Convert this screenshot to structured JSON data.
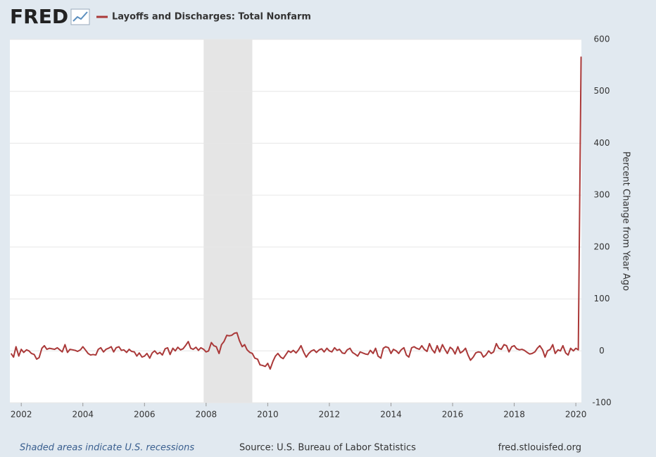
{
  "chart_data": {
    "type": "line",
    "logo": "FRED",
    "y_label": "Percent Change from Year Ago",
    "footer_left": "Shaded areas indicate U.S. recessions",
    "footer_source": "Source: U.S. Bureau of Labor Statistics",
    "footer_right": "fred.stlouisfed.org",
    "xlim": [
      2001.63,
      2020.18
    ],
    "xticks": [
      2002,
      2004,
      2006,
      2008,
      2010,
      2012,
      2014,
      2016,
      2018,
      2020
    ],
    "ylim": [
      -100,
      600
    ],
    "yticks": [
      -100,
      0,
      100,
      200,
      300,
      400,
      500,
      600
    ],
    "grid": true,
    "recessions": [
      [
        2007.92,
        2009.5
      ]
    ],
    "x": [
      2001.67,
      2001.75,
      2001.83,
      2001.92,
      2002.0,
      2002.08,
      2002.17,
      2002.25,
      2002.33,
      2002.42,
      2002.5,
      2002.58,
      2002.67,
      2002.75,
      2002.83,
      2002.92,
      2003.0,
      2003.08,
      2003.17,
      2003.25,
      2003.33,
      2003.42,
      2003.5,
      2003.58,
      2003.67,
      2003.75,
      2003.83,
      2003.92,
      2004.0,
      2004.08,
      2004.17,
      2004.25,
      2004.33,
      2004.42,
      2004.5,
      2004.58,
      2004.67,
      2004.75,
      2004.83,
      2004.92,
      2005.0,
      2005.08,
      2005.17,
      2005.25,
      2005.33,
      2005.42,
      2005.5,
      2005.58,
      2005.67,
      2005.75,
      2005.83,
      2005.92,
      2006.0,
      2006.08,
      2006.17,
      2006.25,
      2006.33,
      2006.42,
      2006.5,
      2006.58,
      2006.67,
      2006.75,
      2006.83,
      2006.92,
      2007.0,
      2007.08,
      2007.17,
      2007.25,
      2007.33,
      2007.42,
      2007.5,
      2007.58,
      2007.67,
      2007.75,
      2007.83,
      2007.92,
      2008.0,
      2008.08,
      2008.17,
      2008.25,
      2008.33,
      2008.42,
      2008.5,
      2008.58,
      2008.67,
      2008.75,
      2008.83,
      2008.92,
      2009.0,
      2009.08,
      2009.17,
      2009.25,
      2009.33,
      2009.42,
      2009.5,
      2009.58,
      2009.67,
      2009.75,
      2009.83,
      2009.92,
      2010.0,
      2010.08,
      2010.17,
      2010.25,
      2010.33,
      2010.42,
      2010.5,
      2010.58,
      2010.67,
      2010.75,
      2010.83,
      2010.92,
      2011.0,
      2011.08,
      2011.17,
      2011.25,
      2011.33,
      2011.42,
      2011.5,
      2011.58,
      2011.67,
      2011.75,
      2011.83,
      2011.92,
      2012.0,
      2012.08,
      2012.17,
      2012.25,
      2012.33,
      2012.42,
      2012.5,
      2012.58,
      2012.67,
      2012.75,
      2012.83,
      2012.92,
      2013.0,
      2013.08,
      2013.17,
      2013.25,
      2013.33,
      2013.42,
      2013.5,
      2013.58,
      2013.67,
      2013.75,
      2013.83,
      2013.92,
      2014.0,
      2014.08,
      2014.17,
      2014.25,
      2014.33,
      2014.42,
      2014.5,
      2014.58,
      2014.67,
      2014.75,
      2014.83,
      2014.92,
      2015.0,
      2015.08,
      2015.17,
      2015.25,
      2015.33,
      2015.42,
      2015.5,
      2015.58,
      2015.67,
      2015.75,
      2015.83,
      2015.92,
      2016.0,
      2016.08,
      2016.17,
      2016.25,
      2016.33,
      2016.42,
      2016.5,
      2016.58,
      2016.67,
      2016.75,
      2016.83,
      2016.92,
      2017.0,
      2017.08,
      2017.17,
      2017.25,
      2017.33,
      2017.42,
      2017.5,
      2017.58,
      2017.67,
      2017.75,
      2017.83,
      2017.92,
      2018.0,
      2018.08,
      2018.17,
      2018.25,
      2018.33,
      2018.42,
      2018.5,
      2018.58,
      2018.67,
      2018.75,
      2018.83,
      2018.92,
      2019.0,
      2019.08,
      2019.17,
      2019.25,
      2019.33,
      2019.42,
      2019.5,
      2019.58,
      2019.67,
      2019.75,
      2019.83,
      2019.92,
      2020.0,
      2020.08,
      2020.17
    ],
    "series": [
      {
        "name": "Layoffs and Discharges: Total Nonfarm",
        "color": "#aa3939",
        "values": [
          -5,
          -12,
          8,
          -10,
          3,
          -3,
          2,
          0,
          -5,
          -7,
          -16,
          -13,
          5,
          10,
          3,
          5,
          4,
          3,
          6,
          2,
          -2,
          12,
          -3,
          3,
          2,
          1,
          -1,
          2,
          8,
          2,
          -5,
          -8,
          -7,
          -8,
          3,
          6,
          -2,
          3,
          5,
          8,
          -2,
          6,
          8,
          1,
          2,
          -3,
          3,
          -1,
          -2,
          -10,
          -4,
          -12,
          -10,
          -5,
          -14,
          -4,
          0,
          -6,
          -3,
          -8,
          4,
          6,
          -7,
          5,
          0,
          7,
          2,
          4,
          10,
          18,
          5,
          3,
          7,
          1,
          6,
          3,
          -2,
          0,
          16,
          10,
          8,
          -5,
          12,
          18,
          30,
          29,
          30,
          34,
          35,
          20,
          8,
          12,
          2,
          -3,
          -5,
          -14,
          -16,
          -27,
          -28,
          -30,
          -24,
          -35,
          -20,
          -10,
          -5,
          -12,
          -15,
          -8,
          0,
          -3,
          1,
          -4,
          2,
          10,
          -3,
          -12,
          -5,
          0,
          2,
          -3,
          2,
          4,
          -2,
          5,
          0,
          -2,
          6,
          1,
          3,
          -4,
          -5,
          2,
          5,
          -3,
          -6,
          -10,
          -2,
          -4,
          -6,
          -7,
          1,
          -5,
          5,
          -10,
          -14,
          5,
          8,
          6,
          -5,
          3,
          0,
          -5,
          2,
          6,
          -8,
          -12,
          6,
          8,
          5,
          3,
          10,
          3,
          -1,
          14,
          3,
          -4,
          10,
          -2,
          12,
          3,
          -5,
          7,
          3,
          -6,
          8,
          -4,
          -1,
          5,
          -8,
          -18,
          -12,
          -4,
          -2,
          -3,
          -12,
          -8,
          0,
          -5,
          -2,
          14,
          5,
          3,
          12,
          10,
          -2,
          8,
          10,
          4,
          2,
          3,
          1,
          -3,
          -6,
          -5,
          -2,
          5,
          10,
          2,
          -12,
          0,
          3,
          12,
          -5,
          2,
          0,
          10,
          -4,
          -8,
          5,
          0,
          5,
          2,
          567
        ]
      }
    ]
  }
}
